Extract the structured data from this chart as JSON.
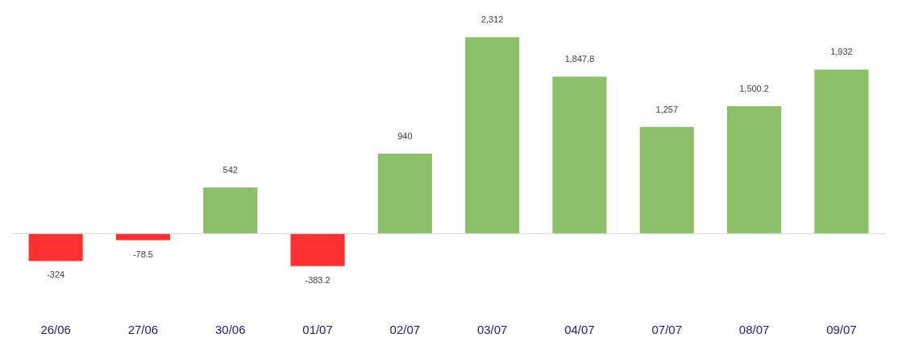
{
  "chart_data": {
    "type": "bar",
    "categories": [
      "26/06",
      "27/06",
      "30/06",
      "01/07",
      "02/07",
      "03/07",
      "04/07",
      "07/07",
      "08/07",
      "09/07"
    ],
    "values": [
      -324,
      -78.5,
      542,
      -383.2,
      940,
      2312,
      1847.8,
      1257,
      1500.2,
      1932
    ],
    "colors": [
      "#ff3030",
      "#ff3030",
      "#8cc068",
      "#ff3030",
      "#8cc068",
      "#8cc068",
      "#8cc068",
      "#8cc068",
      "#8cc068",
      "#8cc068"
    ],
    "value_labels": [
      "-324",
      "-78.5",
      "542",
      "-383.2",
      "940",
      "2,312",
      "1,847.8",
      "1,257",
      "1,500.2",
      "1,932"
    ],
    "tick_labels": "x",
    "grid": false,
    "legend": false,
    "ref_lines": [
      {
        "axis": "y",
        "value": 0,
        "color": "#d9d9d9"
      }
    ]
  }
}
